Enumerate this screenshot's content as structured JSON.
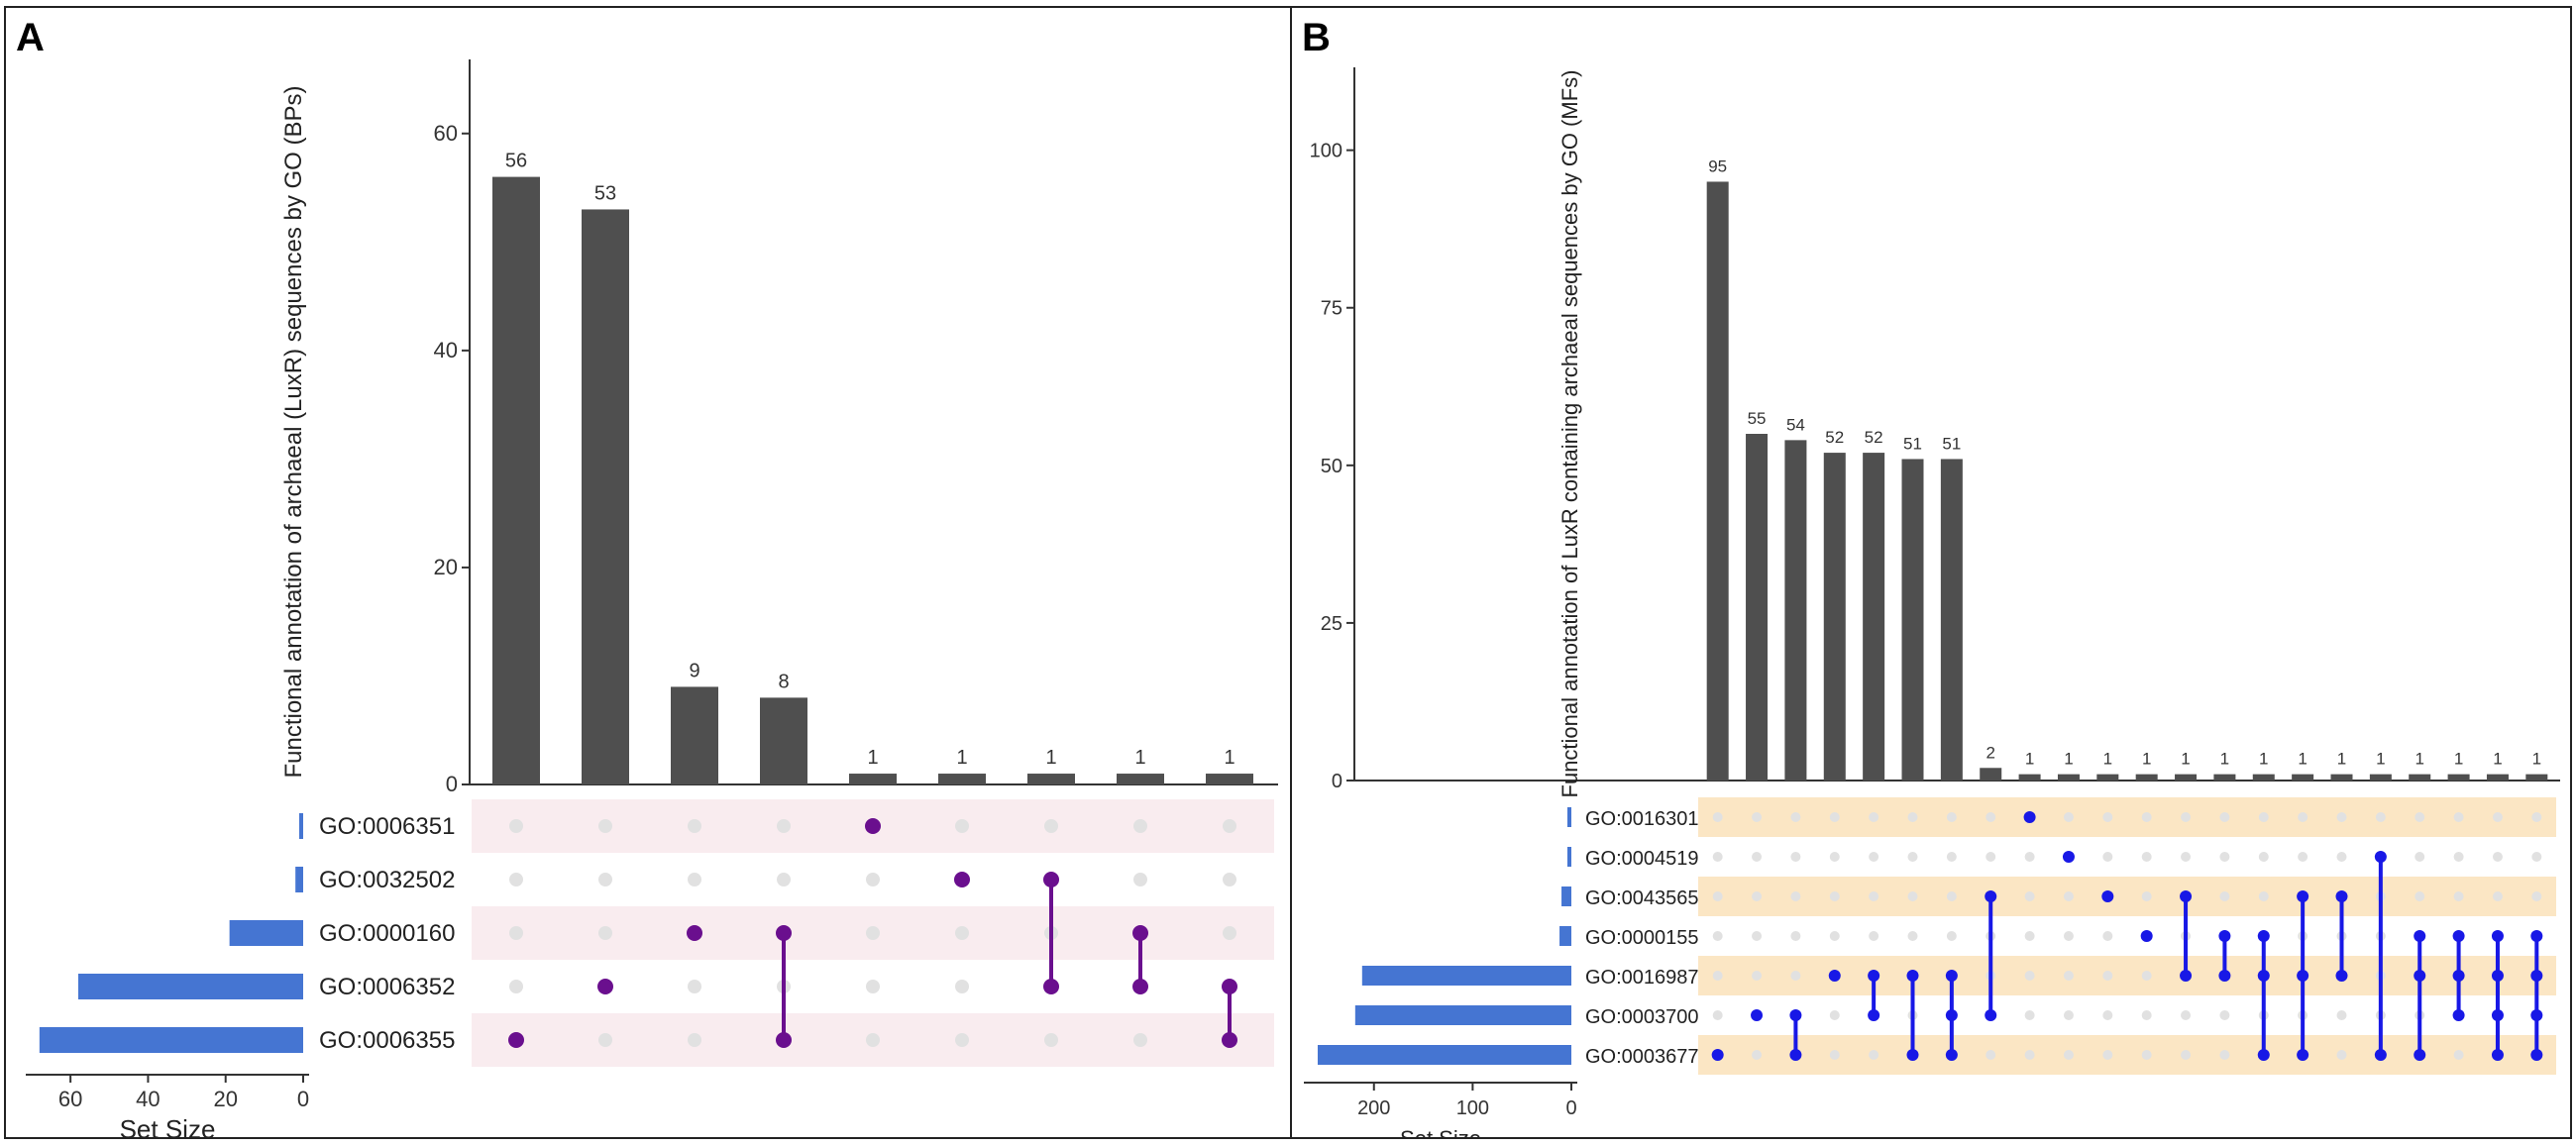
{
  "chart_data": [
    {
      "type": "upset",
      "panel_label": "A",
      "ylabel": "Functional annotation of archaeal (LuxR) sequences by GO (BPs)",
      "xlabel": "Set Size",
      "ylim": [
        0,
        65
      ],
      "yticks": [
        0,
        20,
        40,
        60
      ],
      "set_size_ticks": [
        60,
        40,
        20,
        0
      ],
      "set_size_max": 70,
      "sets": [
        "GO:0006351",
        "GO:0032502",
        "GO:0000160",
        "GO:0006352",
        "GO:0006355"
      ],
      "set_sizes": [
        1,
        2,
        19,
        58,
        68
      ],
      "intersection_values": [
        56,
        53,
        9,
        8,
        1,
        1,
        1,
        1,
        1
      ],
      "intersections": [
        [
          4
        ],
        [
          3
        ],
        [
          2
        ],
        [
          2,
          4
        ],
        [
          0
        ],
        [
          1
        ],
        [
          1,
          3
        ],
        [
          2,
          3
        ],
        [
          3,
          4
        ]
      ],
      "dot_color": "#6a0f8e",
      "stripe_color": "#f9ecef",
      "bar_color": "#4f4f4f",
      "set_bar_color": "#4575d2"
    },
    {
      "type": "upset",
      "panel_label": "B",
      "ylabel": "Functional annotation of LuxR containing archaeal sequences by GO (MFs)",
      "xlabel": "Set Size",
      "ylim": [
        0,
        110
      ],
      "yticks": [
        0,
        25,
        50,
        75,
        100
      ],
      "set_size_ticks": [
        200,
        100,
        0
      ],
      "set_size_max": 265,
      "sets": [
        "GO:0016301",
        "GO:0004519",
        "GO:0043565",
        "GO:0000155",
        "GO:0016987",
        "GO:0003700",
        "GO:0003677"
      ],
      "set_sizes": [
        3,
        4,
        10,
        12,
        212,
        219,
        257
      ],
      "intersection_values": [
        95,
        55,
        54,
        52,
        52,
        51,
        51,
        2,
        1,
        1,
        1,
        1,
        1,
        1,
        1,
        1,
        1,
        1,
        1,
        1,
        1,
        1
      ],
      "intersections": [
        [
          6
        ],
        [
          5
        ],
        [
          5,
          6
        ],
        [
          4
        ],
        [
          4,
          5
        ],
        [
          4,
          6
        ],
        [
          4,
          5,
          6
        ],
        [
          2,
          5
        ],
        [
          0
        ],
        [
          1
        ],
        [
          2
        ],
        [
          3
        ],
        [
          2,
          4
        ],
        [
          3,
          4
        ],
        [
          3,
          4,
          6
        ],
        [
          2,
          4,
          6
        ],
        [
          2,
          4
        ],
        [
          1,
          6
        ],
        [
          3,
          4,
          6
        ],
        [
          3,
          4,
          5
        ],
        [
          3,
          4,
          5,
          6
        ],
        [
          3,
          4,
          5,
          6
        ]
      ],
      "dot_color": "#1818e6",
      "stripe_color": "#fbe6c4",
      "bar_color": "#4f4f4f",
      "set_bar_color": "#4575d2"
    }
  ]
}
